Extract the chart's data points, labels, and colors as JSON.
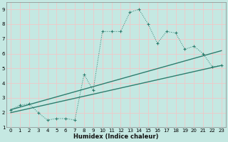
{
  "xlabel": "Humidex (Indice chaleur)",
  "xlim": [
    -0.5,
    23.5
  ],
  "ylim": [
    1,
    9.5
  ],
  "yticks": [
    1,
    2,
    3,
    4,
    5,
    6,
    7,
    8,
    9
  ],
  "xticks": [
    0,
    1,
    2,
    3,
    4,
    5,
    6,
    7,
    8,
    9,
    10,
    11,
    12,
    13,
    14,
    15,
    16,
    17,
    18,
    19,
    20,
    21,
    22,
    23
  ],
  "bg_color": "#c5e8e2",
  "grid_color": "#f0c8c8",
  "line_color": "#2d7d6e",
  "series1_x": [
    0,
    1,
    2,
    3,
    4,
    5,
    6,
    7,
    8,
    9,
    10,
    11,
    12,
    13,
    14,
    15,
    16,
    17,
    18,
    19,
    20,
    21,
    22,
    23
  ],
  "series1_y": [
    2.2,
    2.5,
    2.6,
    2.0,
    1.5,
    1.6,
    1.6,
    1.5,
    4.6,
    3.5,
    7.5,
    7.5,
    7.5,
    8.8,
    9.0,
    8.0,
    6.7,
    7.5,
    7.4,
    6.3,
    6.5,
    6.0,
    5.1,
    5.2
  ],
  "series2_x": [
    0,
    23
  ],
  "series2_y": [
    2.2,
    6.2
  ],
  "series3_x": [
    0,
    23
  ],
  "series3_y": [
    2.0,
    5.2
  ]
}
